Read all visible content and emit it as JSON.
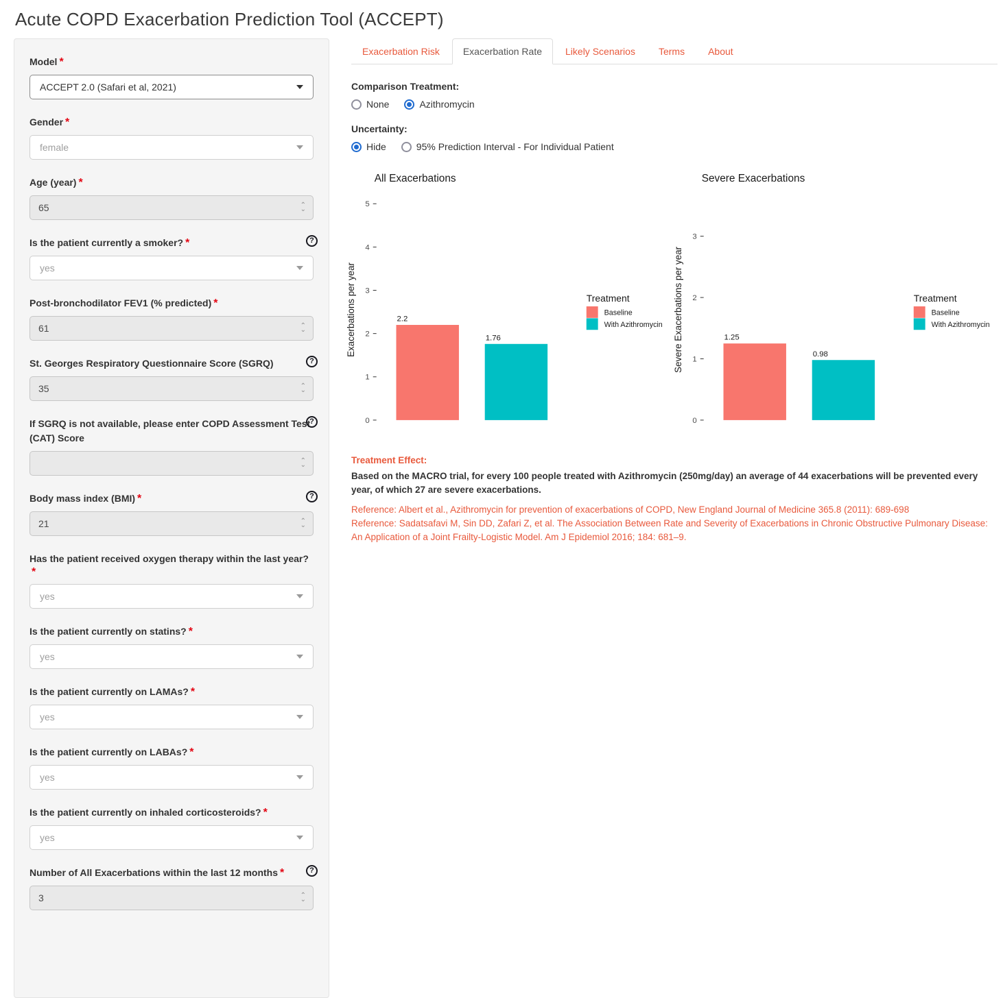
{
  "page": {
    "title": "Acute COPD Exacerbation Prediction Tool (ACCEPT)"
  },
  "colors": {
    "accent_orange": "#E8593C",
    "radio_blue": "#1F6BD0",
    "bar_baseline": "#F8766D",
    "bar_treatment": "#00BFC4",
    "sidebar_bg": "#f5f5f5"
  },
  "tabs": [
    {
      "label": "Exacerbation Risk",
      "active": false
    },
    {
      "label": "Exacerbation Rate",
      "active": true
    },
    {
      "label": "Likely Scenarios",
      "active": false
    },
    {
      "label": "Terms",
      "active": false
    },
    {
      "label": "About",
      "active": false
    }
  ],
  "controls": {
    "comparison": {
      "label": "Comparison Treatment:",
      "options": [
        {
          "label": "None",
          "selected": false
        },
        {
          "label": "Azithromycin",
          "selected": true
        }
      ]
    },
    "uncertainty": {
      "label": "Uncertainty:",
      "options": [
        {
          "label": "Hide",
          "selected": true
        },
        {
          "label": "95% Prediction Interval - For Individual Patient",
          "selected": false
        }
      ]
    }
  },
  "sidebar": {
    "fields": [
      {
        "name": "model",
        "label": "Model",
        "required": true,
        "help": false,
        "control": "select",
        "value": "ACCEPT 2.0 (Safari et al, 2021)",
        "disabled": false
      },
      {
        "name": "gender",
        "label": "Gender",
        "required": true,
        "help": false,
        "control": "select",
        "value": "female",
        "disabled": true
      },
      {
        "name": "age",
        "label": "Age (year)",
        "required": true,
        "help": false,
        "control": "number",
        "value": "65",
        "disabled": true
      },
      {
        "name": "smoker",
        "label": "Is the patient currently a smoker?",
        "required": true,
        "help": true,
        "control": "select",
        "value": "yes",
        "disabled": true
      },
      {
        "name": "fev1",
        "label": "Post-bronchodilator FEV1 (% predicted)",
        "required": true,
        "help": false,
        "control": "number",
        "value": "61",
        "disabled": true
      },
      {
        "name": "sgrq",
        "label": "St. Georges Respiratory Questionnaire Score (SGRQ)",
        "required": false,
        "help": true,
        "control": "number",
        "value": "35",
        "disabled": true
      },
      {
        "name": "cat",
        "label": "If SGRQ is not available, please enter COPD Assessment Test (CAT) Score",
        "required": false,
        "help": true,
        "control": "number",
        "value": "",
        "disabled": true
      },
      {
        "name": "bmi",
        "label": "Body mass index (BMI)",
        "required": true,
        "help": true,
        "control": "number",
        "value": "21",
        "disabled": true
      },
      {
        "name": "oxygen",
        "label": "Has the patient received oxygen therapy within the last year?",
        "required": true,
        "help": false,
        "control": "select",
        "value": "yes",
        "disabled": true
      },
      {
        "name": "statins",
        "label": "Is the patient currently on statins?",
        "required": true,
        "help": false,
        "control": "select",
        "value": "yes",
        "disabled": true
      },
      {
        "name": "lamas",
        "label": "Is the patient currently on LAMAs?",
        "required": true,
        "help": false,
        "control": "select",
        "value": "yes",
        "disabled": true
      },
      {
        "name": "labas",
        "label": "Is the patient currently on LABAs?",
        "required": true,
        "help": false,
        "control": "select",
        "value": "yes",
        "disabled": true
      },
      {
        "name": "ics",
        "label": "Is the patient currently on inhaled corticosteroids?",
        "required": true,
        "help": false,
        "control": "select",
        "value": "yes",
        "disabled": true
      },
      {
        "name": "exacerbations",
        "label": "Number of All Exacerbations within the last 12 months",
        "required": true,
        "help": true,
        "control": "number",
        "value": "3",
        "disabled": true
      }
    ]
  },
  "chart_data": [
    {
      "type": "bar",
      "title": "All Exacerbations",
      "ylabel": "Exacerbations per year",
      "xlabel": "",
      "categories": [
        "Baseline",
        "With Azithromycin"
      ],
      "values": [
        2.2,
        1.76
      ],
      "value_labels": [
        "2.2",
        "1.76"
      ],
      "bar_colors": [
        "#F8766D",
        "#00BFC4"
      ],
      "ylim": [
        0,
        5.1
      ],
      "yticks": [
        0,
        1,
        2,
        3,
        4,
        5
      ],
      "grid": false,
      "legend": {
        "title": "Treatment",
        "position": "right",
        "entries": [
          {
            "label": "Baseline",
            "color": "#F8766D"
          },
          {
            "label": "With Azithromycin",
            "color": "#00BFC4"
          }
        ]
      }
    },
    {
      "type": "bar",
      "title": "Severe Exacerbations",
      "ylabel": "Severe Exacerbations per year",
      "xlabel": "",
      "categories": [
        "Baseline",
        "With Azithromycin"
      ],
      "values": [
        1.25,
        0.98
      ],
      "value_labels": [
        "1.25",
        "0.98"
      ],
      "bar_colors": [
        "#F8766D",
        "#00BFC4"
      ],
      "ylim": [
        0,
        3.6
      ],
      "yticks": [
        0,
        1,
        2,
        3
      ],
      "grid": false,
      "legend": {
        "title": "Treatment",
        "position": "right",
        "entries": [
          {
            "label": "Baseline",
            "color": "#F8766D"
          },
          {
            "label": "With Azithromycin",
            "color": "#00BFC4"
          }
        ]
      }
    }
  ],
  "treatment_effect": {
    "heading": "Treatment Effect:",
    "body": "Based on the MACRO trial, for every 100 people treated with Azithromycin (250mg/day) an average of 44 exacerbations will be prevented every year, of which 27 are severe exacerbations.",
    "references": [
      "Reference: Albert et al., Azithromycin for prevention of exacerbations of COPD, New England Journal of Medicine 365.8 (2011): 689-698",
      "Reference: Sadatsafavi M, Sin DD, Zafari Z, et al. The Association Between Rate and Severity of Exacerbations in Chronic Obstructive Pulmonary Disease: An Application of a Joint Frailty-Logistic Model. Am J Epidemiol 2016; 184: 681–9."
    ]
  }
}
